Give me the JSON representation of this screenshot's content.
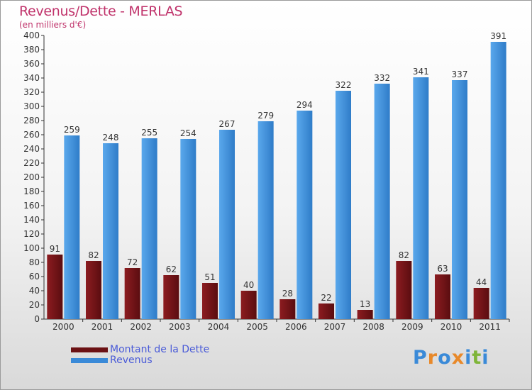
{
  "title": "Revenus/Dette - MERLAS",
  "subtitle": "(en milliers d'€)",
  "chart_data": {
    "type": "bar",
    "title": "Revenus/Dette - MERLAS",
    "ylabel": "(en milliers d'€)",
    "categories": [
      "2000",
      "2001",
      "2002",
      "2003",
      "2004",
      "2005",
      "2006",
      "2007",
      "2008",
      "2009",
      "2010",
      "2011"
    ],
    "series": [
      {
        "name": "Montant de la Dette",
        "color": "#7a1518",
        "values": [
          91,
          82,
          72,
          62,
          51,
          40,
          28,
          22,
          13,
          82,
          63,
          44
        ]
      },
      {
        "name": "Revenus",
        "color": "#3a8ad8",
        "values": [
          259,
          248,
          255,
          254,
          267,
          279,
          294,
          322,
          332,
          341,
          337,
          391
        ]
      }
    ],
    "ylim": [
      0,
      400
    ],
    "ytick_step": 20,
    "grid": false,
    "legend_position": "bottom-left"
  },
  "logo": {
    "text": "Proxiti",
    "letter_colors": [
      "#3a8ad8",
      "#e8892a",
      "#3a8ad8",
      "#e8892a",
      "#3a8ad8",
      "#7fb53a",
      "#3a8ad8"
    ]
  }
}
